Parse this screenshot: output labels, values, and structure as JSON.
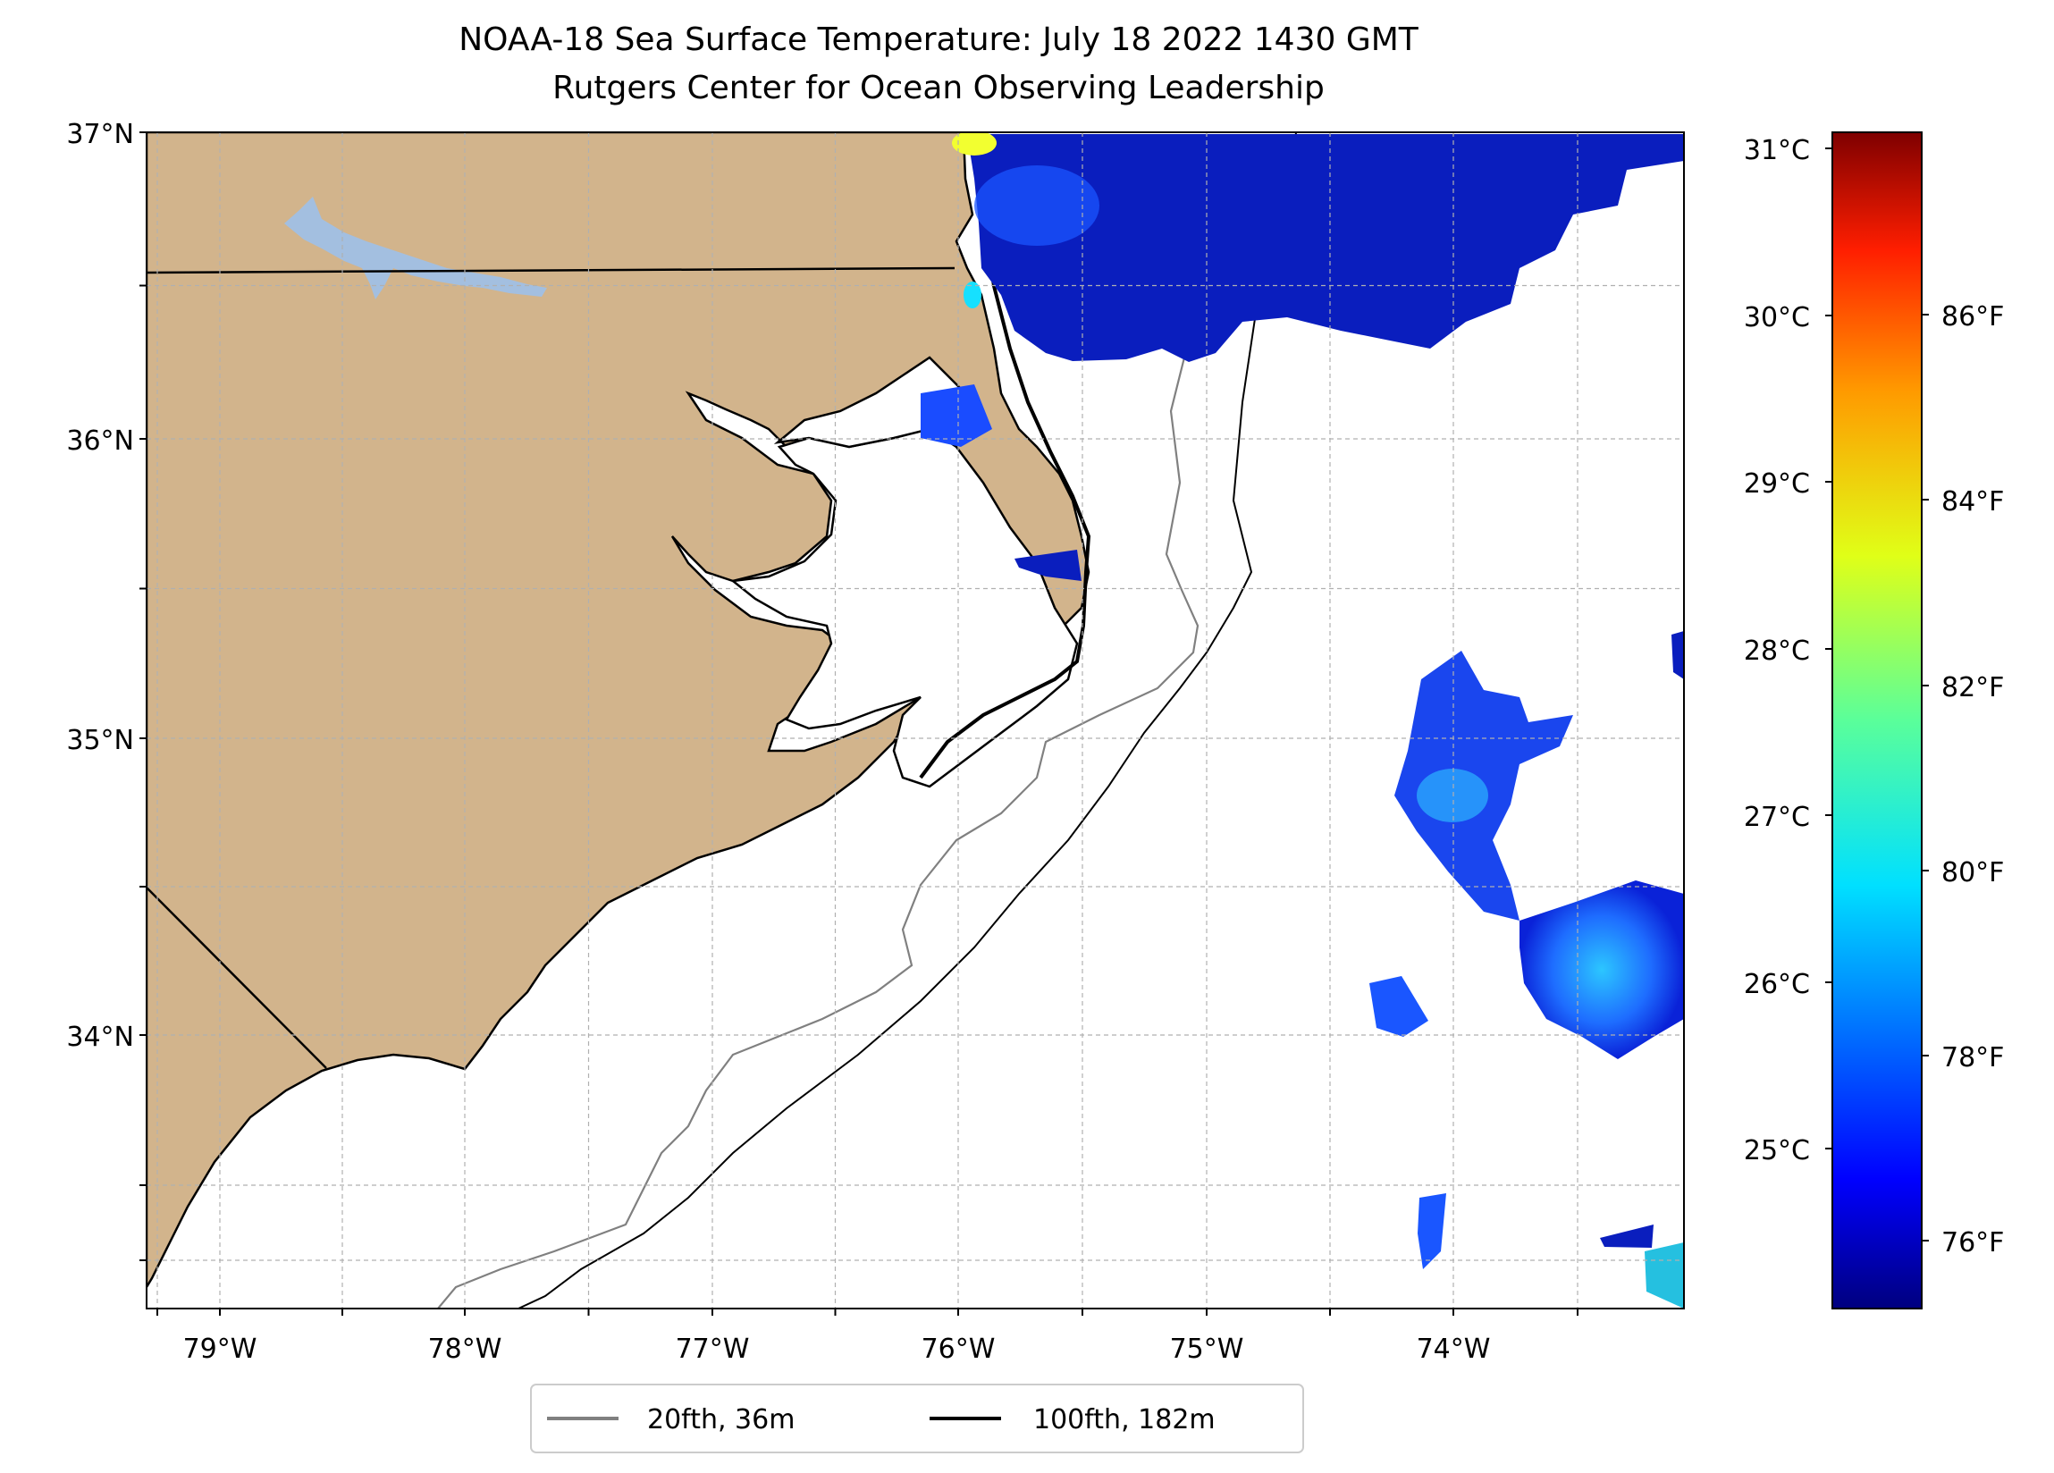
{
  "title": {
    "line1": "NOAA-18 Sea Surface Temperature: July 18 2022 1430 GMT",
    "line2": "Rutgers Center for Ocean Observing Leadership"
  },
  "map": {
    "lat_labels": [
      "37°N",
      "36°N",
      "35°N",
      "34°N"
    ],
    "lon_labels": [
      "79°W",
      "78°W",
      "77°W",
      "76°W",
      "75°W",
      "74°W"
    ],
    "land_color": "#d2b48c",
    "lake_color": "#a3bfe0"
  },
  "colorbar": {
    "colormap": "jet",
    "celsius_labels": [
      "31°C",
      "30°C",
      "29°C",
      "28°C",
      "27°C",
      "26°C",
      "25°C"
    ],
    "fahrenheit_labels": [
      "86°F",
      "84°F",
      "82°F",
      "80°F",
      "78°F",
      "76°F"
    ]
  },
  "legend": {
    "entries": [
      {
        "label": "20fth, 36m",
        "color": "#808080"
      },
      {
        "label": "100fth, 182m",
        "color": "#000000"
      }
    ]
  }
}
